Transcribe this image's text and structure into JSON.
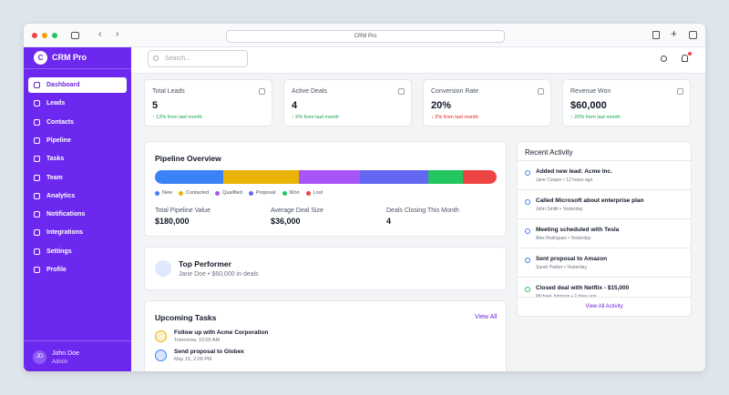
{
  "browser": {
    "url": "CRM Pro"
  },
  "sidebar": {
    "logo": "C",
    "brand": "CRM Pro",
    "nav": [
      "Dashboard",
      "Leads",
      "Contacts",
      "Pipeline",
      "Tasks",
      "Team",
      "Analytics",
      "Notifications",
      "Integrations",
      "Settings",
      "Profile"
    ],
    "user": {
      "initials": "JD",
      "name": "John Doe",
      "role": "Admin"
    }
  },
  "header": {
    "search_placeholder": "Search..."
  },
  "stats": [
    {
      "label": "Total Leads",
      "value": "5",
      "change": "↑ 12% from last month",
      "trend": "up"
    },
    {
      "label": "Active Deals",
      "value": "4",
      "change": "↑ 5% from last month",
      "trend": "up"
    },
    {
      "label": "Conversion Rate",
      "value": "20%",
      "change": "↓ 2% from last month",
      "trend": "down"
    },
    {
      "label": "Revenue Won",
      "value": "$60,000",
      "change": "↑ 20% from last month",
      "trend": "up"
    }
  ],
  "pipeline": {
    "title": "Pipeline Overview",
    "stages": [
      {
        "name": "New",
        "color": "#3b82f6",
        "value": 20
      },
      {
        "name": "Contacted",
        "color": "#eab308",
        "value": 22
      },
      {
        "name": "Qualified",
        "color": "#a855f7",
        "value": 18
      },
      {
        "name": "Proposal",
        "color": "#6366f1",
        "value": 20
      },
      {
        "name": "Won",
        "color": "#22c55e",
        "value": 10
      },
      {
        "name": "Lost",
        "color": "#ef4444",
        "value": 10
      }
    ],
    "metrics": [
      {
        "label": "Total Pipeline Value",
        "value": "$180,000"
      },
      {
        "label": "Average Deal Size",
        "value": "$36,000"
      },
      {
        "label": "Deals Closing This Month",
        "value": "4"
      }
    ]
  },
  "top_performer": {
    "title": "Top Performer",
    "detail": "Jane Doe • $60,000 in deals"
  },
  "tasks": {
    "title": "Upcoming Tasks",
    "link": "View All",
    "items": [
      {
        "title": "Follow up with Acme Corporation",
        "due": "Tomorrow, 10:00 AM",
        "color": "#eab308"
      },
      {
        "title": "Send proposal to Globex",
        "due": "May 15, 2:00 PM",
        "color": "#3b82f6"
      }
    ]
  },
  "activity": {
    "title": "Recent Activity",
    "items": [
      {
        "title": "Added new lead: Acme Inc.",
        "meta": "Jane Cooper • 12 hours ago",
        "color": "#3b82f6"
      },
      {
        "title": "Called Microsoft about enterprise plan",
        "meta": "John Smith • Yesterday",
        "color": "#3b82f6"
      },
      {
        "title": "Meeting scheduled with Tesla",
        "meta": "Alex Rodriguez • Yesterday",
        "color": "#3b82f6"
      },
      {
        "title": "Sent proposal to Amazon",
        "meta": "Sarah Parker • Yesterday",
        "color": "#3b82f6"
      },
      {
        "title": "Closed deal with Netflix - $15,000",
        "meta": "Michael Johnson • 2 days ago",
        "color": "#22c55e"
      }
    ],
    "link": "View All Activity"
  }
}
